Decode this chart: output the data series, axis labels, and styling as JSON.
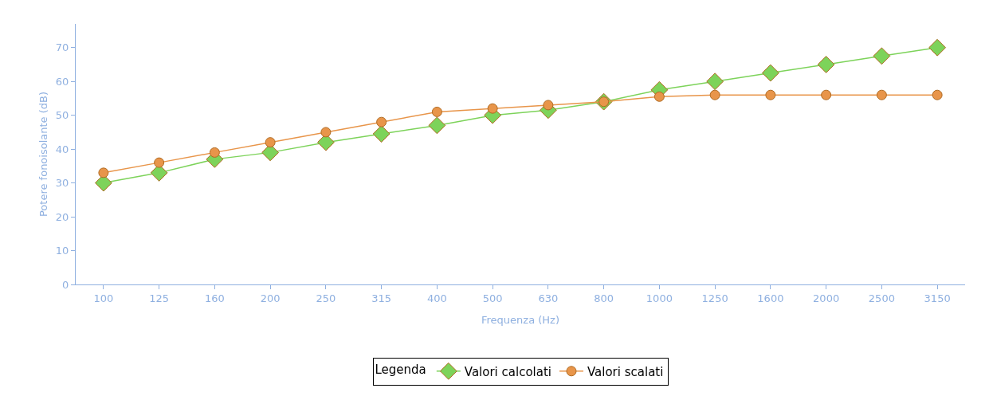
{
  "chart_data": {
    "type": "line",
    "xlabel": "Frequenza (Hz)",
    "ylabel": "Potere fonoisolante (dB)",
    "legend_title": "Legenda",
    "categories": [
      "100",
      "125",
      "160",
      "200",
      "250",
      "315",
      "400",
      "500",
      "630",
      "800",
      "1000",
      "1250",
      "1600",
      "2000",
      "2500",
      "3150"
    ],
    "series": [
      {
        "name": "Valori calcolati",
        "color": "#7dd35a",
        "marker": "diamond",
        "values": [
          30,
          33,
          37,
          39,
          42,
          44.5,
          47,
          50,
          51.5,
          54,
          57.5,
          60,
          62.5,
          65,
          67.5,
          70
        ]
      },
      {
        "name": "Valori scalati",
        "color": "#e8954a",
        "marker": "circle",
        "values": [
          33,
          36,
          39,
          42,
          45,
          48,
          51,
          52,
          53,
          54,
          55.5,
          56,
          56,
          56,
          56,
          56
        ]
      }
    ],
    "ylim": [
      0,
      77
    ],
    "yticks": [
      0,
      10,
      20,
      30,
      40,
      50,
      60,
      70
    ],
    "grid": false,
    "legend": "bottom",
    "line_style": "solid"
  }
}
